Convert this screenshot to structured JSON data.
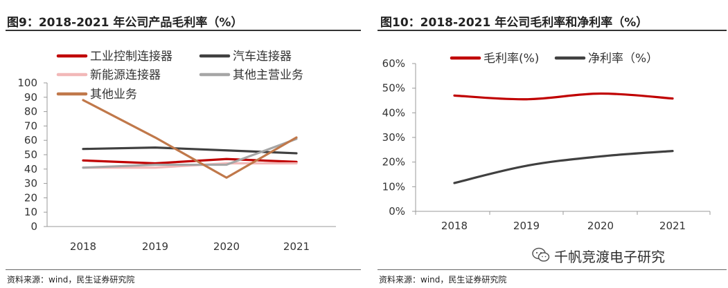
{
  "left_panel": {
    "title": "图9：2018-2021 年公司产品毛利率（%）",
    "source": "资料来源：wind，民生证券研究院"
  },
  "right_panel": {
    "title": "图10：2018-2021 年公司毛利率和净利率（%）",
    "source": "资料来源：wind，民生证券研究院"
  },
  "watermark": {
    "text": "千帆竞渡电子研究",
    "icon": "wechat-icon"
  },
  "chart_data": [
    {
      "type": "line",
      "title": "图9：2018-2021 年公司产品毛利率（%）",
      "categories": [
        "2018",
        "2019",
        "2020",
        "2021"
      ],
      "ylim": [
        0,
        100
      ],
      "yticks": [
        "0",
        "10",
        "20",
        "30",
        "40",
        "50",
        "60",
        "70",
        "80",
        "90",
        "100"
      ],
      "grid": false,
      "legend": "top",
      "series": [
        {
          "name": "工业控制连接器",
          "color": "#c00000",
          "values": [
            46,
            44,
            47,
            45
          ]
        },
        {
          "name": "汽车连接器",
          "color": "#404040",
          "values": [
            54,
            55,
            53,
            51
          ]
        },
        {
          "name": "新能源连接器",
          "color": "#f2b8b8",
          "values": [
            41,
            41,
            44,
            44
          ]
        },
        {
          "name": "其他主营业务",
          "color": "#a6a6a6",
          "values": [
            41,
            43,
            43,
            61
          ]
        },
        {
          "name": "其他业务",
          "color": "#c0784a",
          "values": [
            88,
            62,
            34,
            62
          ]
        }
      ]
    },
    {
      "type": "line",
      "title": "图10：2018-2021 年公司毛利率和净利率（%）",
      "categories": [
        "2018",
        "2019",
        "2020",
        "2021"
      ],
      "ylim": [
        0,
        60
      ],
      "yticks": [
        "0%",
        "10%",
        "20%",
        "30%",
        "40%",
        "50%",
        "60%"
      ],
      "grid": false,
      "legend": "top",
      "series": [
        {
          "name": "毛利率(%)",
          "color": "#c00000",
          "values": [
            47,
            45.5,
            47.8,
            45.8
          ]
        },
        {
          "name": "净利率（%）",
          "color": "#404040",
          "values": [
            11.5,
            18.5,
            22.3,
            24.5
          ]
        }
      ]
    }
  ]
}
